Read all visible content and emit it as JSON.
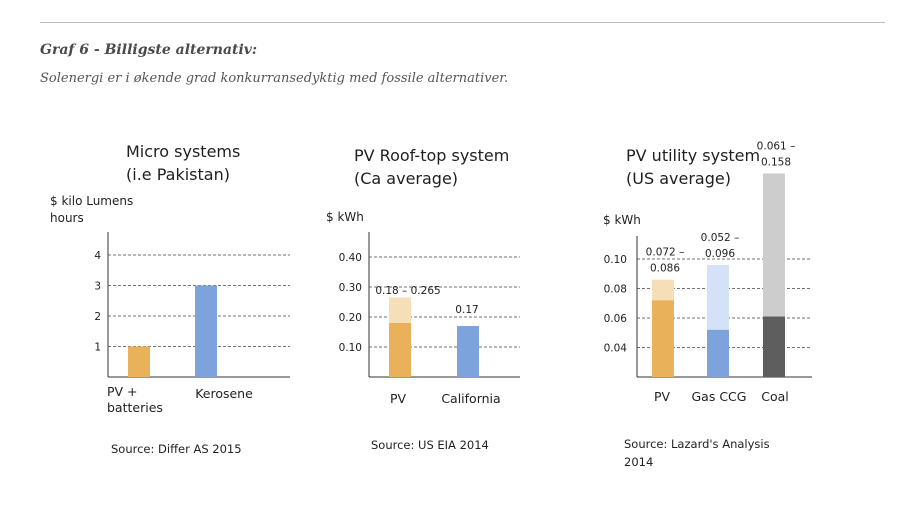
{
  "figure": {
    "title": "Graf 6 - Billigste alternativ:",
    "subtitle": "Solenergi er i økende grad konkurransedyktig med fossile alternativer."
  },
  "colors": {
    "pv": "#e8b15a",
    "pv_light": "#f6dfb8",
    "blue": "#7ea3dc",
    "blue_light": "#d5e1f6",
    "coal": "#5e5e5e",
    "coal_light": "#cdcdcd",
    "grid": "#444444",
    "axis": "#333333"
  },
  "chart_data": [
    {
      "type": "bar",
      "title_line1": "Micro systems",
      "title_line2": "(i.e Pakistan)",
      "ylabel_line1": "$ kilo Lumens",
      "ylabel_line2": "hours",
      "categories": [
        "PV + batteries",
        "Kerosene"
      ],
      "category_lines": [
        [
          "PV +",
          "batteries"
        ],
        [
          "Kerosene"
        ]
      ],
      "values": [
        1,
        3
      ],
      "yticks": [
        "1",
        "2",
        "3",
        "4"
      ],
      "ytick_values": [
        1,
        2,
        3,
        4
      ],
      "ylim": [
        0,
        4.4
      ],
      "source": "Source: Differ AS 2015",
      "grid": true
    },
    {
      "type": "bar",
      "title_line1": "PV Roof-top system",
      "title_line2": "(Ca average)",
      "ylabel_line1": "$ kWh",
      "categories": [
        "PV",
        "California"
      ],
      "category_lines": [
        [
          "PV"
        ],
        [
          "California"
        ]
      ],
      "ranges": [
        [
          0.18,
          0.265
        ],
        [
          0.17,
          0.17
        ]
      ],
      "data_labels": [
        "0.18 – 0.265",
        "0.17"
      ],
      "yticks": [
        "0.10",
        "0.20",
        "0.30",
        "0.40"
      ],
      "ytick_values": [
        0.1,
        0.2,
        0.3,
        0.4
      ],
      "ylim": [
        0,
        0.44
      ],
      "source": "Source: US EIA 2014",
      "grid": true
    },
    {
      "type": "bar",
      "title_line1": "PV utility system",
      "title_line2": "(US average)",
      "ylabel_line1": "$ kWh",
      "categories": [
        "PV",
        "Gas CCG",
        "Coal"
      ],
      "category_lines": [
        [
          "PV"
        ],
        [
          "Gas CCG"
        ],
        [
          "Coal"
        ]
      ],
      "ranges": [
        [
          0.072,
          0.086
        ],
        [
          0.052,
          0.096
        ],
        [
          0.061,
          0.158
        ]
      ],
      "data_label_lines": [
        [
          "0.072 –",
          "0.086"
        ],
        [
          "0.052 –",
          "0.096"
        ],
        [
          "0.061 –",
          "0.158"
        ]
      ],
      "yticks": [
        "0.04",
        "0.06",
        "0.08",
        "0.10"
      ],
      "ytick_values": [
        0.04,
        0.06,
        0.08,
        0.1
      ],
      "source_line1": "Source: Lazard's Analysis",
      "source_line2": "2014",
      "grid": true
    }
  ]
}
